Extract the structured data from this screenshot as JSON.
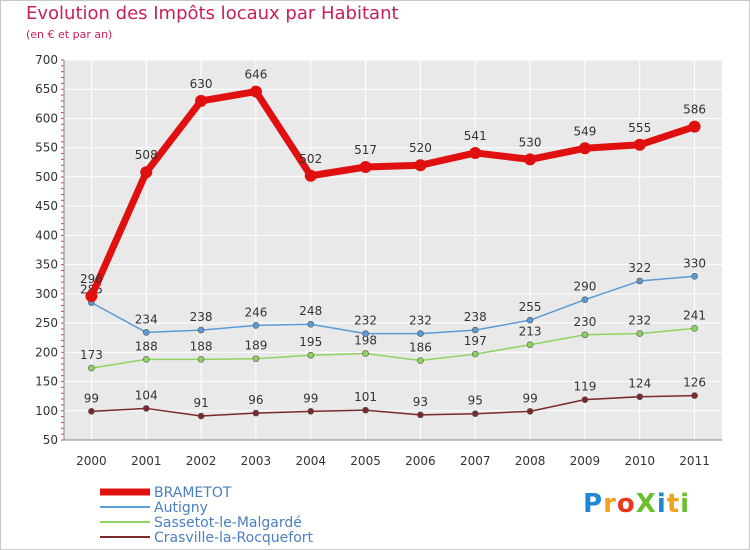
{
  "title": "Evolution des Impôts locaux par Habitant",
  "subtitle": "(en € et par an)",
  "logo": {
    "text": "ProXiti",
    "colors": [
      "#1e88d2",
      "#f2a31d",
      "#e8381a",
      "#6bbf2a",
      "#1e88d2",
      "#f2a31d",
      "#6bbf2a"
    ]
  },
  "chart_data": {
    "type": "line",
    "x": [
      "2000",
      "2001",
      "2002",
      "2003",
      "2004",
      "2005",
      "2006",
      "2007",
      "2008",
      "2009",
      "2010",
      "2011"
    ],
    "ylim": [
      50,
      700
    ],
    "yticks": [
      50,
      100,
      150,
      200,
      250,
      300,
      350,
      400,
      450,
      500,
      550,
      600,
      650,
      700
    ],
    "grid": true,
    "legend_position": "bottom-left",
    "series": [
      {
        "name": "BRAMETOT",
        "color": "#e01010",
        "values": [
          296,
          508,
          630,
          646,
          502,
          517,
          520,
          541,
          530,
          549,
          555,
          586
        ]
      },
      {
        "name": "Autigny",
        "color": "#5b9bd5",
        "values": [
          285,
          234,
          238,
          246,
          248,
          232,
          232,
          238,
          255,
          290,
          322,
          330
        ]
      },
      {
        "name": "Sassetot-le-Malgardé",
        "color": "#8fd360",
        "values": [
          173,
          188,
          188,
          189,
          195,
          198,
          186,
          197,
          213,
          230,
          232,
          241
        ]
      },
      {
        "name": "Crasville-la-Rocquefort",
        "color": "#7a2a2a",
        "values": [
          99,
          104,
          91,
          96,
          99,
          101,
          93,
          95,
          99,
          119,
          124,
          126
        ]
      }
    ]
  }
}
